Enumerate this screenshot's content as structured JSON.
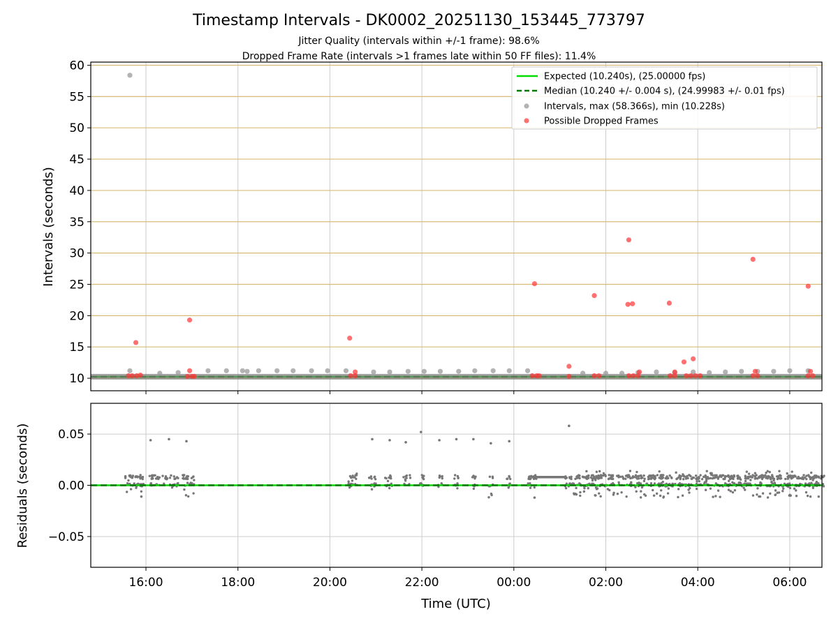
{
  "chart_data": {
    "type": "scatter",
    "title": "Timestamp Intervals - DK0002_20251130_153445_773797",
    "subtitle_lines": [
      "Jitter Quality (intervals within +/-1 frame): 98.6%",
      "Dropped Frame Rate (intervals >1 frames late within 50 FF files): 11.4%"
    ],
    "xlabel": "Time (UTC)",
    "x_time_range_hours": [
      14.8,
      30.7
    ],
    "x_ticks": [
      "16:00",
      "18:00",
      "20:00",
      "22:00",
      "00:00",
      "02:00",
      "04:00",
      "06:00"
    ],
    "x_tick_hours": [
      16,
      18,
      20,
      22,
      24,
      26,
      28,
      30
    ],
    "grid": true,
    "colors": {
      "expected": "#00dd00",
      "median": "#007700",
      "intervals": "#999999",
      "dropped": "#ff3333",
      "residuals": "#777777",
      "top_grid": "#d8bb77",
      "grid": "#cccccc"
    },
    "top_panel": {
      "ylabel": "Intervals (seconds)",
      "ylim": [
        8,
        60.5
      ],
      "y_ticks": [
        10,
        15,
        20,
        25,
        30,
        35,
        40,
        45,
        50,
        55,
        60
      ],
      "expected_value": 10.24,
      "median_value": 10.24,
      "legend": [
        "Expected (10.240s), (25.00000 fps)",
        "Median (10.240 +/- 0.004 s), (24.99983 +/- 0.01 fps)",
        "Intervals, max (58.366s), min (10.228s)",
        "Possible Dropped Frames"
      ],
      "legend_position": "top-right",
      "interval_points": [
        [
          15.65,
          58.4
        ],
        [
          15.65,
          11.2
        ],
        [
          16.3,
          10.8
        ],
        [
          16.7,
          10.9
        ],
        [
          17.35,
          11.2
        ],
        [
          17.75,
          11.2
        ],
        [
          18.1,
          11.2
        ],
        [
          18.2,
          11.1
        ],
        [
          18.45,
          11.2
        ],
        [
          18.85,
          11.2
        ],
        [
          19.2,
          11.2
        ],
        [
          19.6,
          11.2
        ],
        [
          19.95,
          11.2
        ],
        [
          20.35,
          11.2
        ],
        [
          20.95,
          11.0
        ],
        [
          21.3,
          11.0
        ],
        [
          21.7,
          11.1
        ],
        [
          22.05,
          11.1
        ],
        [
          22.4,
          11.1
        ],
        [
          22.8,
          11.1
        ],
        [
          23.15,
          11.2
        ],
        [
          23.55,
          11.2
        ],
        [
          23.9,
          11.2
        ],
        [
          24.3,
          11.2
        ],
        [
          25.5,
          10.8
        ],
        [
          26.0,
          10.8
        ],
        [
          26.35,
          10.8
        ],
        [
          26.7,
          10.9
        ],
        [
          27.1,
          11.0
        ],
        [
          27.5,
          10.9
        ],
        [
          27.9,
          11.0
        ],
        [
          28.25,
          10.9
        ],
        [
          28.6,
          11.0
        ],
        [
          28.95,
          11.1
        ],
        [
          29.3,
          11.1
        ],
        [
          29.65,
          11.1
        ],
        [
          30.0,
          11.2
        ],
        [
          30.4,
          11.2
        ],
        [
          30.75,
          11.2
        ]
      ],
      "dropped_points": [
        [
          15.78,
          15.7
        ],
        [
          16.95,
          19.3
        ],
        [
          20.43,
          16.4
        ],
        [
          24.45,
          25.1
        ],
        [
          25.2,
          11.9
        ],
        [
          25.75,
          23.2
        ],
        [
          26.5,
          32.1
        ],
        [
          26.48,
          21.8
        ],
        [
          26.58,
          21.9
        ],
        [
          27.38,
          22.0
        ],
        [
          27.7,
          12.6
        ],
        [
          27.9,
          13.1
        ],
        [
          29.2,
          29.0
        ],
        [
          30.4,
          24.7
        ],
        [
          16.95,
          11.2
        ],
        [
          20.55,
          11.0
        ],
        [
          26.73,
          11.0
        ],
        [
          27.5,
          11.0
        ],
        [
          29.25,
          11.1
        ],
        [
          30.45,
          11.1
        ],
        [
          15.62,
          10.4
        ],
        [
          15.7,
          10.4
        ],
        [
          15.8,
          10.4
        ],
        [
          15.88,
          10.5
        ],
        [
          16.9,
          10.3
        ],
        [
          17.0,
          10.3
        ],
        [
          17.05,
          10.3
        ],
        [
          20.45,
          10.4
        ],
        [
          20.55,
          10.4
        ],
        [
          24.4,
          10.4
        ],
        [
          24.5,
          10.4
        ],
        [
          24.55,
          10.4
        ],
        [
          25.2,
          10.3
        ],
        [
          25.75,
          10.4
        ],
        [
          25.85,
          10.4
        ],
        [
          26.5,
          10.4
        ],
        [
          26.6,
          10.4
        ],
        [
          26.7,
          10.4
        ],
        [
          27.4,
          10.4
        ],
        [
          27.5,
          10.4
        ],
        [
          27.75,
          10.4
        ],
        [
          27.85,
          10.4
        ],
        [
          27.95,
          10.4
        ],
        [
          28.05,
          10.4
        ],
        [
          29.2,
          10.4
        ],
        [
          29.3,
          10.4
        ],
        [
          30.4,
          10.4
        ],
        [
          30.5,
          10.4
        ]
      ]
    },
    "bottom_panel": {
      "ylabel": "Residuals (seconds)",
      "ylim": [
        -0.08,
        0.08
      ],
      "y_ticks": [
        -0.05,
        0.0,
        0.05
      ],
      "y_tick_labels": [
        "−0.05",
        "0.00",
        "0.05"
      ],
      "residual_outliers": [
        [
          16.1,
          0.044
        ],
        [
          16.5,
          0.045
        ],
        [
          16.88,
          0.043
        ],
        [
          20.92,
          0.045
        ],
        [
          21.3,
          0.044
        ],
        [
          21.65,
          0.042
        ],
        [
          21.98,
          0.052
        ],
        [
          22.38,
          0.044
        ],
        [
          22.75,
          0.045
        ],
        [
          23.12,
          0.045
        ],
        [
          23.5,
          0.041
        ],
        [
          23.9,
          0.043
        ],
        [
          25.2,
          0.058
        ],
        [
          15.9,
          -0.011
        ],
        [
          24.45,
          -0.012
        ]
      ],
      "residual_clusters": [
        {
          "x_range": [
            15.55,
            15.95
          ],
          "y_range": [
            -0.008,
            0.01
          ],
          "count": 50
        },
        {
          "x_range": [
            16.05,
            16.3
          ],
          "y_range": [
            -0.003,
            0.01
          ],
          "count": 25
        },
        {
          "x_range": [
            16.35,
            16.7
          ],
          "y_range": [
            -0.005,
            0.01
          ],
          "count": 30
        },
        {
          "x_range": [
            16.8,
            17.05
          ],
          "y_range": [
            -0.012,
            0.01
          ],
          "count": 30
        },
        {
          "x_range": [
            20.4,
            20.6
          ],
          "y_range": [
            -0.005,
            0.012
          ],
          "count": 25
        },
        {
          "x_range": [
            20.85,
            21.0
          ],
          "y_range": [
            -0.005,
            0.01
          ],
          "count": 15
        },
        {
          "x_range": [
            21.2,
            21.35
          ],
          "y_range": [
            -0.005,
            0.01
          ],
          "count": 15
        },
        {
          "x_range": [
            21.6,
            21.75
          ],
          "y_range": [
            -0.005,
            0.01
          ],
          "count": 12
        },
        {
          "x_range": [
            21.95,
            22.05
          ],
          "y_range": [
            -0.005,
            0.01
          ],
          "count": 10
        },
        {
          "x_range": [
            22.35,
            22.45
          ],
          "y_range": [
            -0.005,
            0.01
          ],
          "count": 10
        },
        {
          "x_range": [
            22.7,
            22.8
          ],
          "y_range": [
            -0.012,
            0.01
          ],
          "count": 10
        },
        {
          "x_range": [
            23.1,
            23.2
          ],
          "y_range": [
            -0.005,
            0.01
          ],
          "count": 10
        },
        {
          "x_range": [
            23.45,
            23.55
          ],
          "y_range": [
            -0.012,
            0.01
          ],
          "count": 10
        },
        {
          "x_range": [
            23.85,
            23.95
          ],
          "y_range": [
            -0.005,
            0.01
          ],
          "count": 10
        },
        {
          "x_range": [
            24.3,
            24.5
          ],
          "y_range": [
            -0.012,
            0.008
          ],
          "count": 20
        },
        {
          "x_range": [
            25.1,
            30.75
          ],
          "y_range": [
            -0.012,
            0.014
          ],
          "count": 700
        }
      ],
      "residual_band": {
        "x_range": [
          24.4,
          25.1
        ],
        "y": 0.008
      }
    }
  }
}
